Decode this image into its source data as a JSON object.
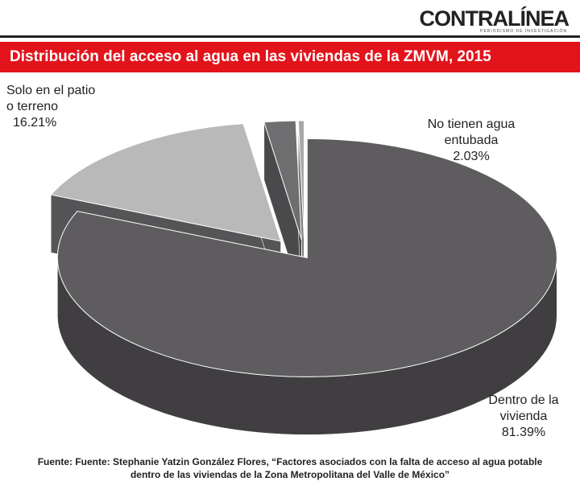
{
  "header": {
    "logo": "CONTRALÍNEA",
    "tagline": "PERIODISMO DE INVESTIGACIÓN"
  },
  "chart_data": {
    "type": "pie3d",
    "title": "Distribución del acceso al agua en las viviendas de la ZMVM, 2015",
    "categories": [
      "Dentro de la vivienda",
      "Solo en el patio o terreno",
      "No tienen agua entubada",
      null
    ],
    "values": [
      81.39,
      16.21,
      2.03,
      0.37
    ],
    "value_labels": [
      "81.39%",
      "16.21%",
      "2.03%",
      null
    ],
    "colors": [
      "#5e5c5f",
      "#b9b9b9",
      "#6e6e70",
      "#a8a8a8"
    ],
    "side_colors": [
      "#403e41",
      "#555456",
      "#4a4a4c",
      "#7a7a7a"
    ],
    "source": "Fuente: Fuente: Stephanie Yatzin González Flores, “Factores asociados con la falta de acceso al agua potable dentro de las viviendas de la Zona Metropolitana del Valle de México”"
  }
}
